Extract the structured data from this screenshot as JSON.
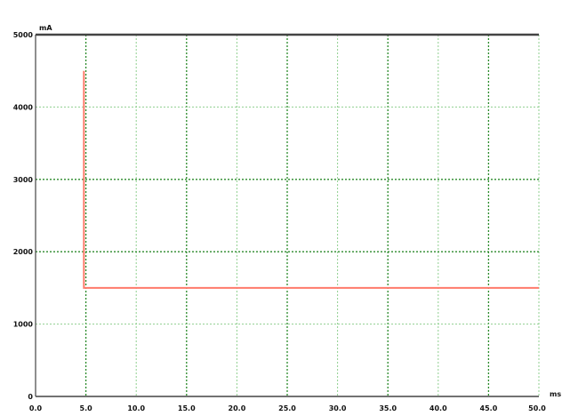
{
  "chart_data": {
    "type": "line",
    "title": "",
    "xlabel": "ms",
    "ylabel": "mA",
    "xlim": [
      0,
      50
    ],
    "ylim": [
      0,
      5000
    ],
    "x_ticks": [
      0,
      5,
      10,
      15,
      20,
      25,
      30,
      35,
      40,
      45,
      50
    ],
    "x_tick_labels": [
      "0.0",
      "5.0",
      "10.0",
      "15.0",
      "20.0",
      "25.0",
      "30.0",
      "35.0",
      "40.0",
      "45.0",
      "50.0"
    ],
    "y_ticks": [
      0,
      1000,
      2000,
      3000,
      4000,
      5000
    ],
    "y_tick_labels": [
      "0",
      "1000",
      "2000",
      "3000",
      "4000",
      "5000"
    ],
    "grid": true,
    "series": [
      {
        "color": "#ff7b6b",
        "points": [
          {
            "x": 4.8,
            "y": 4500
          },
          {
            "x": 4.8,
            "y": 1500
          },
          {
            "x": 50,
            "y": 1500
          }
        ]
      }
    ],
    "colors": {
      "grid_major": "#2a8a2a",
      "grid_minor": "#8fcf8f",
      "frame": "#444444"
    }
  }
}
